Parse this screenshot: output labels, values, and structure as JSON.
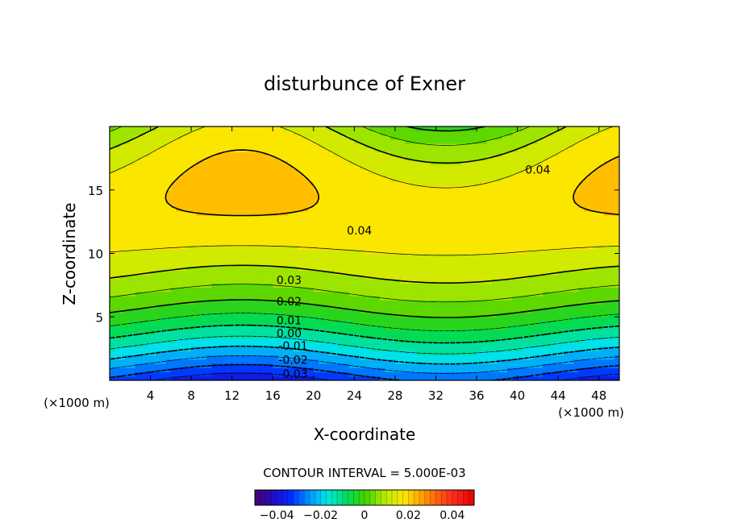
{
  "chart_data": {
    "type": "contour",
    "title": "disturbunce of Exner",
    "xlabel": "X-coordinate",
    "ylabel": "Z-coordinate",
    "xunit": "(×1000 m)",
    "yunit": "(×1000 m)",
    "xlim": [
      0,
      50
    ],
    "ylim": [
      0,
      20
    ],
    "x_ticks": [
      4,
      8,
      12,
      16,
      20,
      24,
      28,
      32,
      36,
      40,
      44,
      48
    ],
    "y_ticks": [
      5,
      10,
      15
    ],
    "contour_interval_text": "CONTOUR INTERVAL = 5.000E-03",
    "contour_interval": 0.005,
    "contour_labels": [
      {
        "text": "0.04",
        "x": 24.5,
        "z": 11.5
      },
      {
        "text": "0.04",
        "x": 42.0,
        "z": 16.3
      },
      {
        "text": "0.03",
        "x": 17.6,
        "z": 7.6
      },
      {
        "text": "0.02",
        "x": 17.6,
        "z": 5.9
      },
      {
        "text": "0.01",
        "x": 17.6,
        "z": 4.4
      },
      {
        "text": "0.00",
        "x": 17.6,
        "z": 3.4
      },
      {
        "text": "-0.01",
        "x": 18.0,
        "z": 2.4
      },
      {
        "text": "-0.02",
        "x": 18.0,
        "z": 1.3
      },
      {
        "text": "-0.03",
        "x": 18.0,
        "z": 0.2
      }
    ],
    "value_range": [
      -0.05,
      0.05
    ],
    "colorbar": {
      "ticks": [
        -0.04,
        -0.02,
        0,
        0.02,
        0.04
      ],
      "tick_labels": [
        "−0.04",
        "−0.02",
        "0",
        "0.02",
        "0.04"
      ]
    }
  }
}
